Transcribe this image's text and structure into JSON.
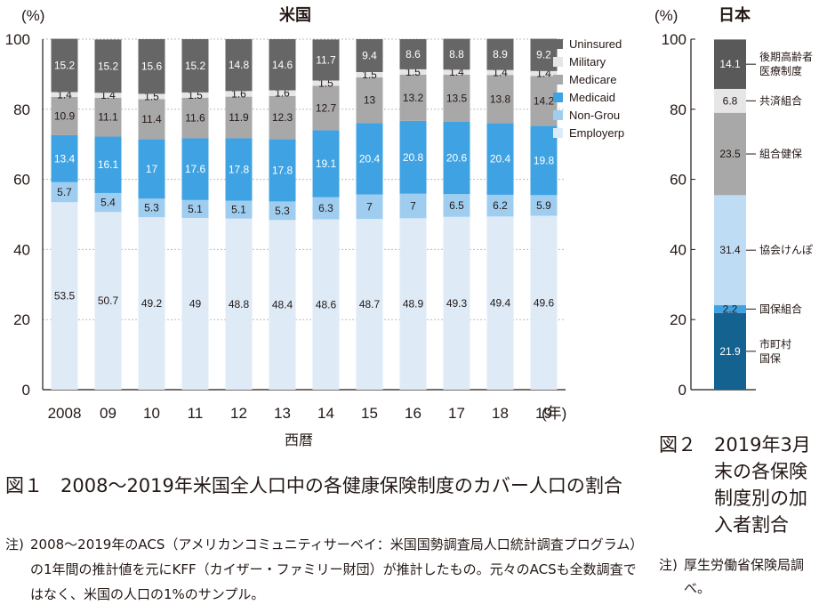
{
  "chart_data": [
    {
      "type": "bar",
      "stacked": true,
      "title": "米国",
      "ylabel": "(%)",
      "xlabel": "西暦",
      "x_unit": "(年)",
      "ylim": [
        0,
        100
      ],
      "yticks": [
        0,
        20,
        40,
        60,
        80,
        100
      ],
      "categories": [
        "2008",
        "09",
        "10",
        "11",
        "12",
        "13",
        "14",
        "15",
        "16",
        "17",
        "18",
        "19"
      ],
      "legend_placement": "right",
      "series": [
        {
          "name": "Employerp",
          "color": "#deebf7",
          "label_color": "#231815",
          "values": [
            53.5,
            50.7,
            49.2,
            49,
            48.8,
            48.4,
            48.6,
            48.7,
            48.9,
            49.3,
            49.4,
            49.6
          ]
        },
        {
          "name": "Non-Grou",
          "color": "#9fcdf0",
          "label_color": "#231815",
          "values": [
            5.7,
            5.4,
            5.3,
            5.1,
            5.1,
            5.3,
            6.3,
            7,
            7,
            6.5,
            6.2,
            5.9
          ]
        },
        {
          "name": "Medicaid",
          "color": "#3fa3e3",
          "label_color": "#ffffff",
          "values": [
            13.4,
            16.1,
            17,
            17.6,
            17.8,
            17.8,
            19.1,
            20.4,
            20.8,
            20.6,
            20.4,
            19.8
          ]
        },
        {
          "name": "Medicare",
          "color": "#a8a8a8",
          "label_color": "#231815",
          "values": [
            10.9,
            11.1,
            11.4,
            11.6,
            11.9,
            12.3,
            12.7,
            13,
            13.2,
            13.5,
            13.8,
            14.2
          ]
        },
        {
          "name": "Military",
          "color": "#e6e6e6",
          "label_color": "#231815",
          "values": [
            1.4,
            1.4,
            1.5,
            1.5,
            1.6,
            1.6,
            1.5,
            1.5,
            1.5,
            1.4,
            1.4,
            1.4
          ]
        },
        {
          "name": "Uninsured",
          "color": "#666666",
          "label_color": "#ffffff",
          "values": [
            15.2,
            15.2,
            15.6,
            15.2,
            14.8,
            14.6,
            11.7,
            9.4,
            8.6,
            8.8,
            8.9,
            9.2
          ]
        }
      ]
    },
    {
      "type": "bar",
      "stacked": true,
      "title": "日本",
      "ylabel": "(%)",
      "ylim": [
        0,
        100
      ],
      "yticks": [
        0,
        20,
        40,
        60,
        80,
        100
      ],
      "categories": [
        ""
      ],
      "series": [
        {
          "name": "市町村\n国保",
          "color": "#14628f",
          "label_color": "#ffffff",
          "values": [
            21.9
          ]
        },
        {
          "name": "国保組合",
          "color": "#3fa3e3",
          "label_color": "#231815",
          "values": [
            2.2
          ]
        },
        {
          "name": "協会けんぽ",
          "color": "#bfdcf5",
          "label_color": "#231815",
          "values": [
            31.4
          ]
        },
        {
          "name": "組合健保",
          "color": "#a8a8a8",
          "label_color": "#231815",
          "values": [
            23.5
          ]
        },
        {
          "name": "共済組合",
          "color": "#e6e6e6",
          "label_color": "#231815",
          "values": [
            6.8
          ]
        },
        {
          "name": "後期高齢者\n医療制度",
          "color": "#595959",
          "label_color": "#ffffff",
          "values": [
            14.1
          ]
        }
      ]
    }
  ],
  "fig1": {
    "num": "図１",
    "title": "2008～2019年米国全人口中の各健康保険制度のカバー人口の割合",
    "note_num": "注)",
    "note": "2008～2019年のACS（アメリカンコミュニティサーベイ：米国国勢調査局人口統計調査プログラム）の1年間の推計値を元にKFF（カイザー・ファミリー財団）が推計したもの。元々のACSも全数調査ではなく、米国の人口の1%のサンプル。"
  },
  "fig2": {
    "num": "図２",
    "title": "2019年3月末の各保険制度別の加入者割合",
    "note_num": "注)",
    "note": "厚生労働省保険局調べ。"
  }
}
